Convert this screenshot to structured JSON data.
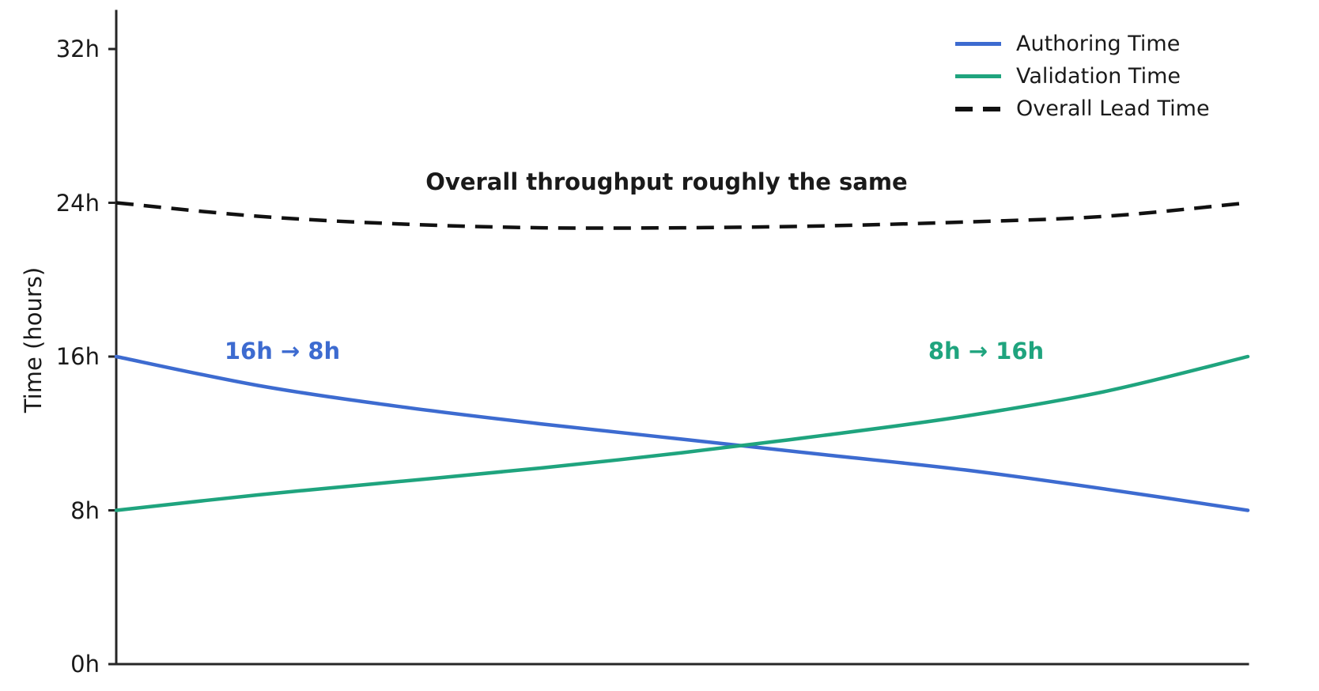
{
  "chart_data": {
    "type": "line",
    "x_progress": [
      0,
      0.125,
      0.25,
      0.375,
      0.5,
      0.625,
      0.75,
      0.875,
      1
    ],
    "x_tick_labels": [],
    "series": [
      {
        "name": "Authoring Time",
        "color": "#3d6bd0",
        "style": "solid",
        "values": [
          16.0,
          14.5,
          13.4,
          12.5,
          11.7,
          10.9,
          10.1,
          9.1,
          8.0
        ]
      },
      {
        "name": "Validation Time",
        "color": "#1fa47e",
        "style": "solid",
        "values": [
          8.0,
          8.8,
          9.5,
          10.2,
          11.0,
          11.9,
          12.9,
          14.2,
          16.0
        ]
      },
      {
        "name": "Overall Lead Time",
        "color": "#111111",
        "style": "dashed",
        "values": [
          24.0,
          23.3,
          22.9,
          22.7,
          22.7,
          22.8,
          23.0,
          23.3,
          24.0
        ]
      }
    ],
    "title": "",
    "xlabel": "",
    "ylabel": "Time (hours)",
    "ylim": [
      0,
      33.5
    ],
    "yticks": [
      {
        "value": 0,
        "label": "0h"
      },
      {
        "value": 8,
        "label": "8h"
      },
      {
        "value": 16,
        "label": "16h"
      },
      {
        "value": 24,
        "label": "24h"
      },
      {
        "value": 32,
        "label": "32h"
      }
    ],
    "grid": false,
    "legend_position": "upper right",
    "annotations": [
      {
        "id": "throughput",
        "text": "Overall throughput roughly the same",
        "color": "#1a1a1a"
      },
      {
        "id": "authoring",
        "text": "16h → 8h",
        "color": "#3d6bd0"
      },
      {
        "id": "validation",
        "text": "8h → 16h",
        "color": "#1fa47e"
      }
    ],
    "axis_color": "#262626"
  }
}
